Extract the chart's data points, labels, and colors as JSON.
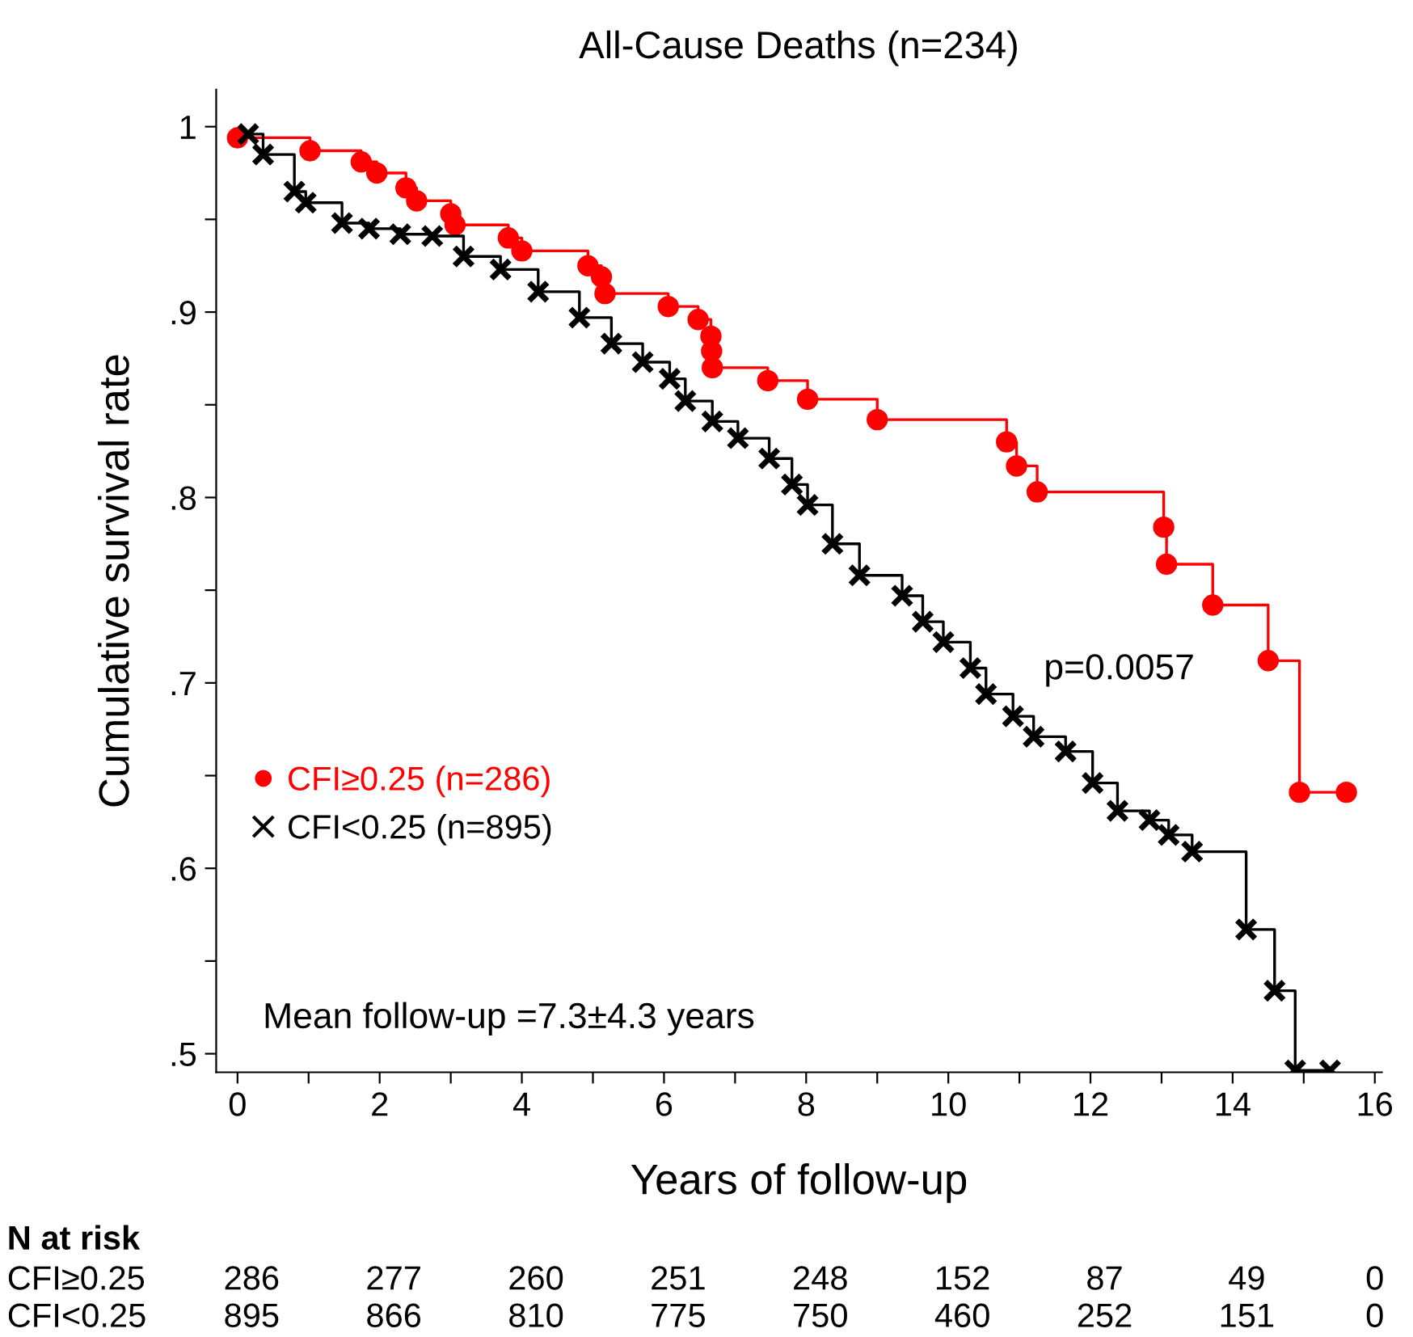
{
  "chart_data": {
    "type": "step",
    "title": "All-Cause Deaths (n=234)",
    "xlabel": "Years of follow-up",
    "ylabel": "Cumulative survival rate",
    "series": [
      {
        "name": "CFI≥0.25 (n=286)",
        "color": "#ff0000",
        "marker": "circle",
        "x": [
          0,
          1.02,
          1.74,
          1.96,
          2.37,
          2.52,
          3.0,
          3.06,
          3.81,
          4.0,
          4.93,
          5.12,
          5.17,
          6.06,
          6.48,
          6.66,
          6.67,
          6.68,
          7.46,
          8.02,
          9.0,
          10.82,
          10.96,
          11.25,
          13.03,
          13.07,
          13.72,
          14.5,
          14.94,
          15.6
        ],
        "values": [
          0.994,
          0.987,
          0.981,
          0.975,
          0.967,
          0.96,
          0.953,
          0.947,
          0.94,
          0.933,
          0.925,
          0.919,
          0.91,
          0.903,
          0.896,
          0.887,
          0.879,
          0.87,
          0.863,
          0.853,
          0.842,
          0.83,
          0.817,
          0.803,
          0.784,
          0.764,
          0.742,
          0.712,
          0.641,
          0.641
        ]
      },
      {
        "name": "CFI<0.25 (n=895)",
        "color": "#000000",
        "marker": "cross",
        "x": [
          0.15,
          0.36,
          0.8,
          0.96,
          1.47,
          1.85,
          2.29,
          2.74,
          3.18,
          3.7,
          4.23,
          4.81,
          5.26,
          5.7,
          6.08,
          6.3,
          6.68,
          7.04,
          7.48,
          7.8,
          8.02,
          8.37,
          8.75,
          9.35,
          9.64,
          9.93,
          10.31,
          10.53,
          10.91,
          11.2,
          11.65,
          12.03,
          12.38,
          12.83,
          13.1,
          13.43,
          14.19,
          14.59,
          14.88,
          15.37
        ],
        "values": [
          0.996,
          0.985,
          0.965,
          0.959,
          0.948,
          0.945,
          0.942,
          0.941,
          0.93,
          0.923,
          0.911,
          0.897,
          0.883,
          0.873,
          0.864,
          0.852,
          0.841,
          0.832,
          0.821,
          0.807,
          0.796,
          0.775,
          0.758,
          0.747,
          0.733,
          0.722,
          0.708,
          0.694,
          0.682,
          0.671,
          0.663,
          0.646,
          0.631,
          0.626,
          0.618,
          0.609,
          0.567,
          0.534,
          0.491,
          0.491
        ]
      }
    ],
    "xlim": [
      -0.3,
      16.1
    ],
    "xticks": [
      0,
      {
        "value": 1,
        "label": null
      },
      2,
      {
        "value": 3,
        "label": null
      },
      4,
      {
        "value": 5,
        "label": null
      },
      6,
      {
        "value": 7,
        "label": null
      },
      8,
      {
        "value": 9,
        "label": null
      },
      10,
      {
        "value": 11,
        "label": null
      },
      12,
      {
        "value": 13,
        "label": null
      },
      14,
      {
        "value": 15,
        "label": null
      },
      16
    ],
    "ylim": [
      0.49,
      1.02
    ],
    "yticks": [
      {
        "value": 0.5,
        "label": ".5"
      },
      {
        "value": 0.55,
        "label": null
      },
      {
        "value": 0.6,
        "label": ".6"
      },
      {
        "value": 0.65,
        "label": null
      },
      {
        "value": 0.7,
        "label": ".7"
      },
      {
        "value": 0.75,
        "label": null
      },
      {
        "value": 0.8,
        "label": ".8"
      },
      {
        "value": 0.85,
        "label": null
      },
      {
        "value": 0.9,
        "label": ".9"
      },
      {
        "value": 0.95,
        "label": null
      },
      1
    ],
    "grid": false,
    "legend": "bottom left",
    "annotations": [
      "p=0.0057",
      "Mean follow-up =7.3±4.3 years",
      "N at risk",
      "CFI≥0.25",
      "CFI<0.25",
      "286",
      "277",
      "260",
      "251",
      "248",
      "152",
      "87",
      "49",
      "0",
      "895",
      "866",
      "810",
      "775",
      "750",
      "460",
      "252",
      "151",
      "0"
    ]
  }
}
